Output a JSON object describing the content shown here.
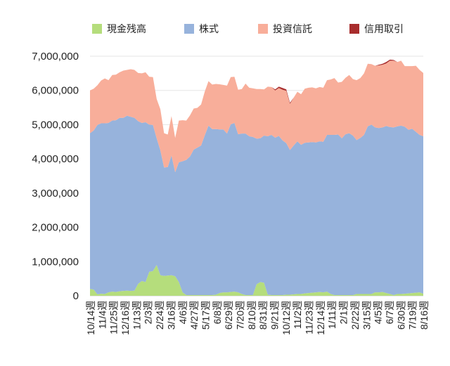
{
  "chart_data": {
    "type": "area",
    "stacked": true,
    "title": "",
    "xlabel": "",
    "ylabel": "",
    "ylim": [
      0,
      7000000
    ],
    "yticks": [
      0,
      1000000,
      2000000,
      3000000,
      4000000,
      5000000,
      6000000,
      7000000
    ],
    "ytick_labels": [
      "0",
      "1,000,000",
      "2,000,000",
      "3,000,000",
      "4,000,000",
      "5,000,000",
      "6,000,000",
      "7,000,000"
    ],
    "xtick_labels": [
      "10/14週",
      "11/4週",
      "11/25週",
      "12/16週",
      "1/13週",
      "2/3週",
      "2/24週",
      "3/16週",
      "4/6週",
      "4/27週",
      "5/17週",
      "6/8週",
      "6/29週",
      "7/20週",
      "8/10週",
      "8/31週",
      "9/21週",
      "10/12週",
      "11/2週",
      "11/23週",
      "12/14週",
      "1/11週",
      "2/1週",
      "2/22週",
      "3/15週",
      "4/5週",
      "6/7週",
      "6/30週",
      "7/19週",
      "8/16週"
    ],
    "grid": true,
    "legend_position": "top",
    "series": [
      {
        "name": "現金残高",
        "color": "#b5dd7c",
        "values": [
          200000,
          180000,
          40000,
          60000,
          50000,
          100000,
          120000,
          110000,
          130000,
          140000,
          150000,
          140000,
          150000,
          350000,
          430000,
          400000,
          700000,
          720000,
          900000,
          600000,
          580000,
          590000,
          600000,
          570000,
          400000,
          100000,
          20000,
          20000,
          20000,
          20000,
          20000,
          20000,
          20000,
          20000,
          30000,
          80000,
          100000,
          100000,
          110000,
          120000,
          100000,
          50000,
          20000,
          20000,
          20000,
          340000,
          400000,
          380000,
          30000,
          20000,
          20000,
          20000,
          20000,
          30000,
          30000,
          40000,
          50000,
          50000,
          70000,
          80000,
          90000,
          100000,
          110000,
          100000,
          120000,
          50000,
          20000,
          20000,
          20000,
          20000,
          20000,
          20000,
          50000,
          50000,
          50000,
          50000,
          50000,
          100000,
          100000,
          110000,
          80000,
          50000,
          20000,
          50000,
          50000,
          60000,
          70000,
          80000,
          90000,
          100000,
          60000
        ]
      },
      {
        "name": "株式",
        "color": "#97b3dc",
        "values": [
          4550000,
          4650000,
          4950000,
          4980000,
          4990000,
          4950000,
          5000000,
          5020000,
          5070000,
          5060000,
          5110000,
          5090000,
          5050000,
          4750000,
          4620000,
          4670000,
          4300000,
          4270000,
          3700000,
          3650000,
          3170000,
          3170000,
          3500000,
          3040000,
          3500000,
          3830000,
          3950000,
          4050000,
          4250000,
          4310000,
          4370000,
          4670000,
          4950000,
          4850000,
          4840000,
          4780000,
          4760000,
          4640000,
          4900000,
          4930000,
          4620000,
          4690000,
          4720000,
          4640000,
          4620000,
          4250000,
          4200000,
          4300000,
          4630000,
          4680000,
          4600000,
          4650000,
          4520000,
          4430000,
          4230000,
          4350000,
          4460000,
          4360000,
          4400000,
          4400000,
          4400000,
          4380000,
          4400000,
          4400000,
          4580000,
          4650000,
          4680000,
          4690000,
          4580000,
          4700000,
          4730000,
          4660000,
          4500000,
          4560000,
          4650000,
          4900000,
          4950000,
          4820000,
          4800000,
          4810000,
          4880000,
          4880000,
          4900000,
          4900000,
          4920000,
          4880000,
          4780000,
          4800000,
          4700000,
          4600000,
          4600000
        ]
      },
      {
        "name": "投資信託",
        "color": "#f8ae9a",
        "values": [
          1250000,
          1220000,
          1160000,
          1250000,
          1310000,
          1250000,
          1330000,
          1330000,
          1330000,
          1380000,
          1340000,
          1390000,
          1400000,
          1410000,
          1450000,
          1460000,
          1400000,
          1400000,
          1150000,
          1200000,
          1000000,
          950000,
          1150000,
          1000000,
          1220000,
          1200000,
          1150000,
          1200000,
          1200000,
          1160000,
          1200000,
          1280000,
          1300000,
          1300000,
          1320000,
          1320000,
          1300000,
          1400000,
          1380000,
          1350000,
          1300000,
          1300000,
          1460000,
          1420000,
          1420000,
          1450000,
          1440000,
          1350000,
          1450000,
          1400000,
          1380000,
          1400000,
          1480000,
          1530000,
          1350000,
          1400000,
          1450000,
          1480000,
          1580000,
          1600000,
          1600000,
          1580000,
          1590000,
          1580000,
          1600000,
          1620000,
          1660000,
          1520000,
          1650000,
          1650000,
          1700000,
          1650000,
          1750000,
          1750000,
          1800000,
          1830000,
          1770000,
          1800000,
          1830000,
          1830000,
          1830000,
          1940000,
          1950000,
          1880000,
          1900000,
          1770000,
          1860000,
          1830000,
          1930000,
          1900000,
          1850000
        ]
      },
      {
        "name": "信用取引",
        "color": "#a82d2d",
        "values": [
          0,
          0,
          0,
          0,
          0,
          0,
          0,
          0,
          0,
          0,
          0,
          0,
          0,
          0,
          0,
          0,
          0,
          0,
          0,
          0,
          0,
          0,
          0,
          0,
          0,
          0,
          0,
          0,
          0,
          0,
          0,
          0,
          0,
          0,
          0,
          0,
          0,
          0,
          0,
          0,
          0,
          0,
          0,
          0,
          0,
          0,
          0,
          0,
          0,
          0,
          30000,
          40000,
          50000,
          40000,
          30000,
          0,
          0,
          0,
          0,
          0,
          0,
          0,
          0,
          0,
          0,
          0,
          0,
          0,
          0,
          0,
          0,
          0,
          0,
          0,
          0,
          0,
          0,
          0,
          20000,
          30000,
          40000,
          30000,
          20000,
          0,
          0,
          0,
          0,
          0,
          0,
          0,
          0
        ]
      }
    ]
  }
}
